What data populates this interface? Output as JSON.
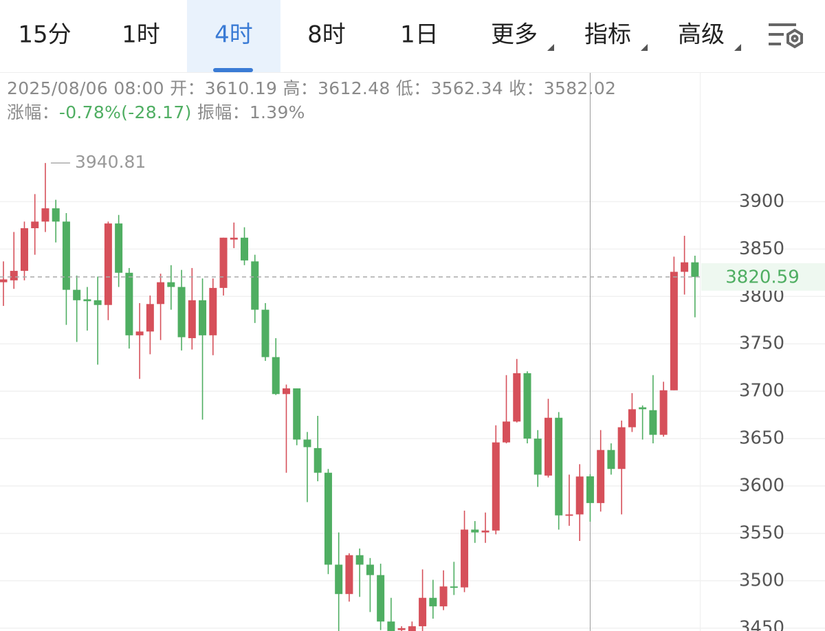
{
  "toolbar": {
    "tabs": [
      "15分",
      "1时",
      "4时",
      "8时",
      "1日",
      "更多",
      "指标",
      "高级"
    ],
    "selected_index": 2
  },
  "chart_data": {
    "type": "candlestick",
    "up_color": "#d6505a",
    "down_color": "#4fae62",
    "open": [
      3815,
      3817,
      3827,
      3872,
      3879,
      3893,
      3879,
      3807,
      3797,
      3796,
      3791,
      3877,
      3825,
      3759,
      3763,
      3792,
      3815,
      3810,
      3756,
      3796,
      3759,
      3809,
      3860,
      3862,
      3837,
      3786,
      3736,
      3697,
      3703,
      3649,
      3640,
      3614,
      3517,
      3486,
      3527,
      3517,
      3506,
      3457,
      3448,
      3446,
      3452,
      3482,
      3473,
      3494,
      3493,
      3554,
      3551,
      3553,
      3646,
      3668,
      3719,
      3650,
      3611,
      3672,
      3569,
      3570,
      3610.19,
      3582,
      3638,
      3618,
      3662,
      3683,
      3680,
      3654,
      3701,
      3826,
      3836
    ],
    "high": [
      3837,
      3868,
      3879,
      3908,
      3940.81,
      3902,
      3888,
      3822,
      3810,
      3821,
      3879,
      3886,
      3830,
      3793,
      3801,
      3824,
      3833,
      3828,
      3830,
      3819,
      3819,
      3862,
      3878,
      3873,
      3844,
      3793,
      3756,
      3707,
      3703,
      3657,
      3674,
      3618,
      3551,
      3529,
      3534,
      3524,
      3518,
      3482,
      3452,
      3457,
      3512,
      3501,
      3511,
      3520,
      3574,
      3563,
      3572,
      3664,
      3717,
      3734,
      3721,
      3659,
      3692,
      3678,
      3612,
      3623,
      3612.48,
      3659,
      3645,
      3669,
      3698,
      3685,
      3717,
      3710,
      3842,
      3864,
      3843
    ],
    "low": [
      3790,
      3808,
      3817,
      3844,
      3868,
      3857,
      3770,
      3752,
      3764,
      3728,
      3775,
      3810,
      3745,
      3713,
      3739,
      3754,
      3786,
      3743,
      3744,
      3670,
      3738,
      3801,
      3851,
      3833,
      3772,
      3732,
      3696,
      3614,
      3643,
      3583,
      3605,
      3507,
      3447,
      3478,
      3483,
      3467,
      3448,
      3440,
      3440,
      3440,
      3440,
      3460,
      3469,
      3485,
      3488,
      3540,
      3540,
      3549,
      3645,
      3667,
      3645,
      3599,
      3609,
      3554,
      3558,
      3542,
      3562.34,
      3573,
      3612,
      3570,
      3657,
      3649,
      3645,
      3652,
      3701,
      3802,
      3778
    ],
    "close": [
      3818,
      3827,
      3872,
      3879,
      3893,
      3879,
      3807,
      3796,
      3795,
      3791,
      3877,
      3825,
      3759,
      3763,
      3792,
      3815,
      3810,
      3757,
      3796,
      3759,
      3809,
      3862,
      3862,
      3838,
      3786,
      3736,
      3697,
      3703,
      3649,
      3641,
      3614,
      3517,
      3486,
      3527,
      3517,
      3506,
      3457,
      3445,
      3450,
      3452,
      3482,
      3473,
      3494,
      3493,
      3554,
      3551,
      3553,
      3646,
      3668,
      3719,
      3650,
      3612,
      3672,
      3569,
      3570,
      3610,
      3582.02,
      3638,
      3618,
      3662,
      3681,
      3681,
      3654,
      3701,
      3826,
      3836,
      3820.59
    ],
    "ylim": [
      3447,
      3975
    ],
    "yticks": [
      3450,
      3500,
      3550,
      3600,
      3650,
      3700,
      3750,
      3800,
      3850,
      3900
    ],
    "grid": true,
    "selected_candle": 56,
    "tooltip": {
      "datetime": "2025/08/06 08:00",
      "open_label": "开：",
      "high_label": "高：",
      "low_label": "低：",
      "close_label": "收：",
      "change_label": "涨幅：",
      "change": "-0.78%(-28.17)",
      "amplitude_label": "振幅：",
      "amplitude": "1.39%"
    }
  }
}
